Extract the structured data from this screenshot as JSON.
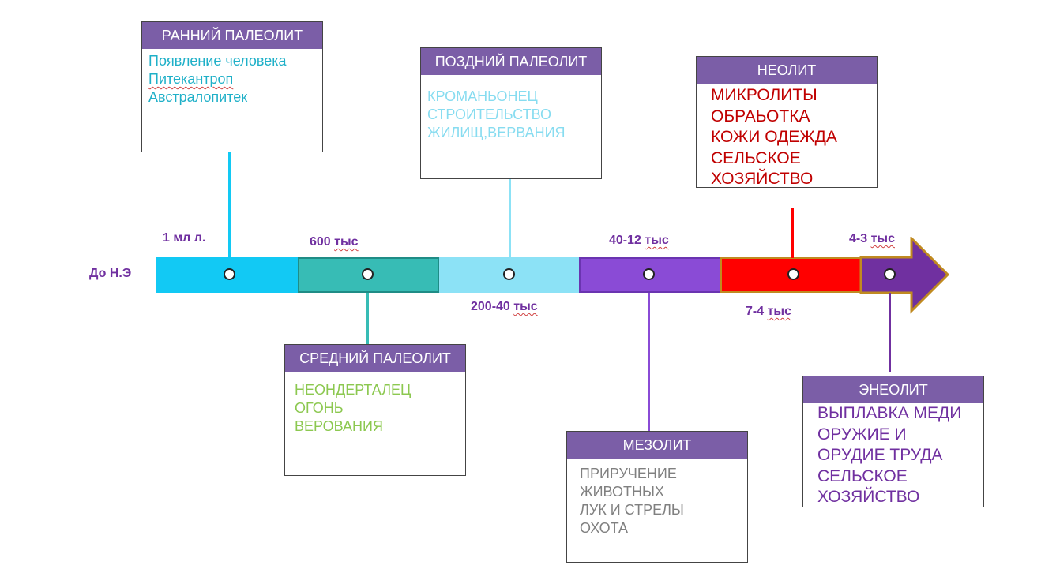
{
  "era_label": "До Н.Э",
  "dates": {
    "d1": "1 мл л.",
    "d2_num": "600",
    "d2_unit": "тыс",
    "d3_num": "200-40",
    "d3_unit": "тыс",
    "d4_num": "40-12",
    "d4_unit": "тыс",
    "d5_num": "7-4",
    "d5_unit": "тыс",
    "d6_num": "4-3",
    "d6_unit": "тыс"
  },
  "periods": {
    "early": {
      "title": "РАННИЙ ПАЛЕОЛИТ",
      "lines": [
        "Появление человека",
        "Питекантроп",
        "Австралопитек"
      ],
      "color": "#1fb0c8"
    },
    "middle": {
      "title": "СРЕДНИЙ ПАЛЕОЛИТ",
      "lines": [
        "НЕОНДЕРТАЛЕЦ",
        "ОГОНЬ",
        "ВЕРОВАНИЯ"
      ],
      "color": "#8cc850"
    },
    "late": {
      "title": "ПОЗДНИЙ ПАЛЕОЛИТ",
      "lines": [
        "КРОМАНЬОНЕЦ",
        "СТРОИТЕЛЬСТВО",
        "ЖИЛИЩ,ВЕРВАНИЯ"
      ],
      "color": "#87dcf0"
    },
    "mesolithic": {
      "title": "МЕЗОЛИТ",
      "lines": [
        "ПРИРУЧЕНИЕ",
        "ЖИВОТНЫХ",
        "ЛУК И СТРЕЛЫ",
        "ОХОТА"
      ],
      "color": "#808080"
    },
    "neolithic": {
      "title": "НЕОЛИТ",
      "lines": [
        "МИКРОЛИТЫ",
        "ОБРАЬОТКА",
        "КОЖИ ОДЕЖДА",
        "СЕЛЬСКОЕ",
        "ХОЗЯЙСТВО"
      ],
      "color": "#c00000"
    },
    "eneolithic": {
      "title": "ЭНЕОЛИТ",
      "lines": [
        "ВЫПЛАВКА МЕДИ",
        "ОРУЖИЕ И",
        "ОРУДИЕ ТРУДА",
        "СЕЛЬСКОЕ",
        "ХОЗЯЙСТВО"
      ],
      "color": "#7030a0"
    }
  },
  "colors": {
    "seg1": "#12c9f4",
    "seg2": "#37bcb5",
    "seg3": "#8ce2f6",
    "seg4": "#8a4bd6",
    "seg5": "#ff0000",
    "seg6": "#7030a0",
    "header": "#7b5ea7",
    "date_text": "#7030a0"
  }
}
